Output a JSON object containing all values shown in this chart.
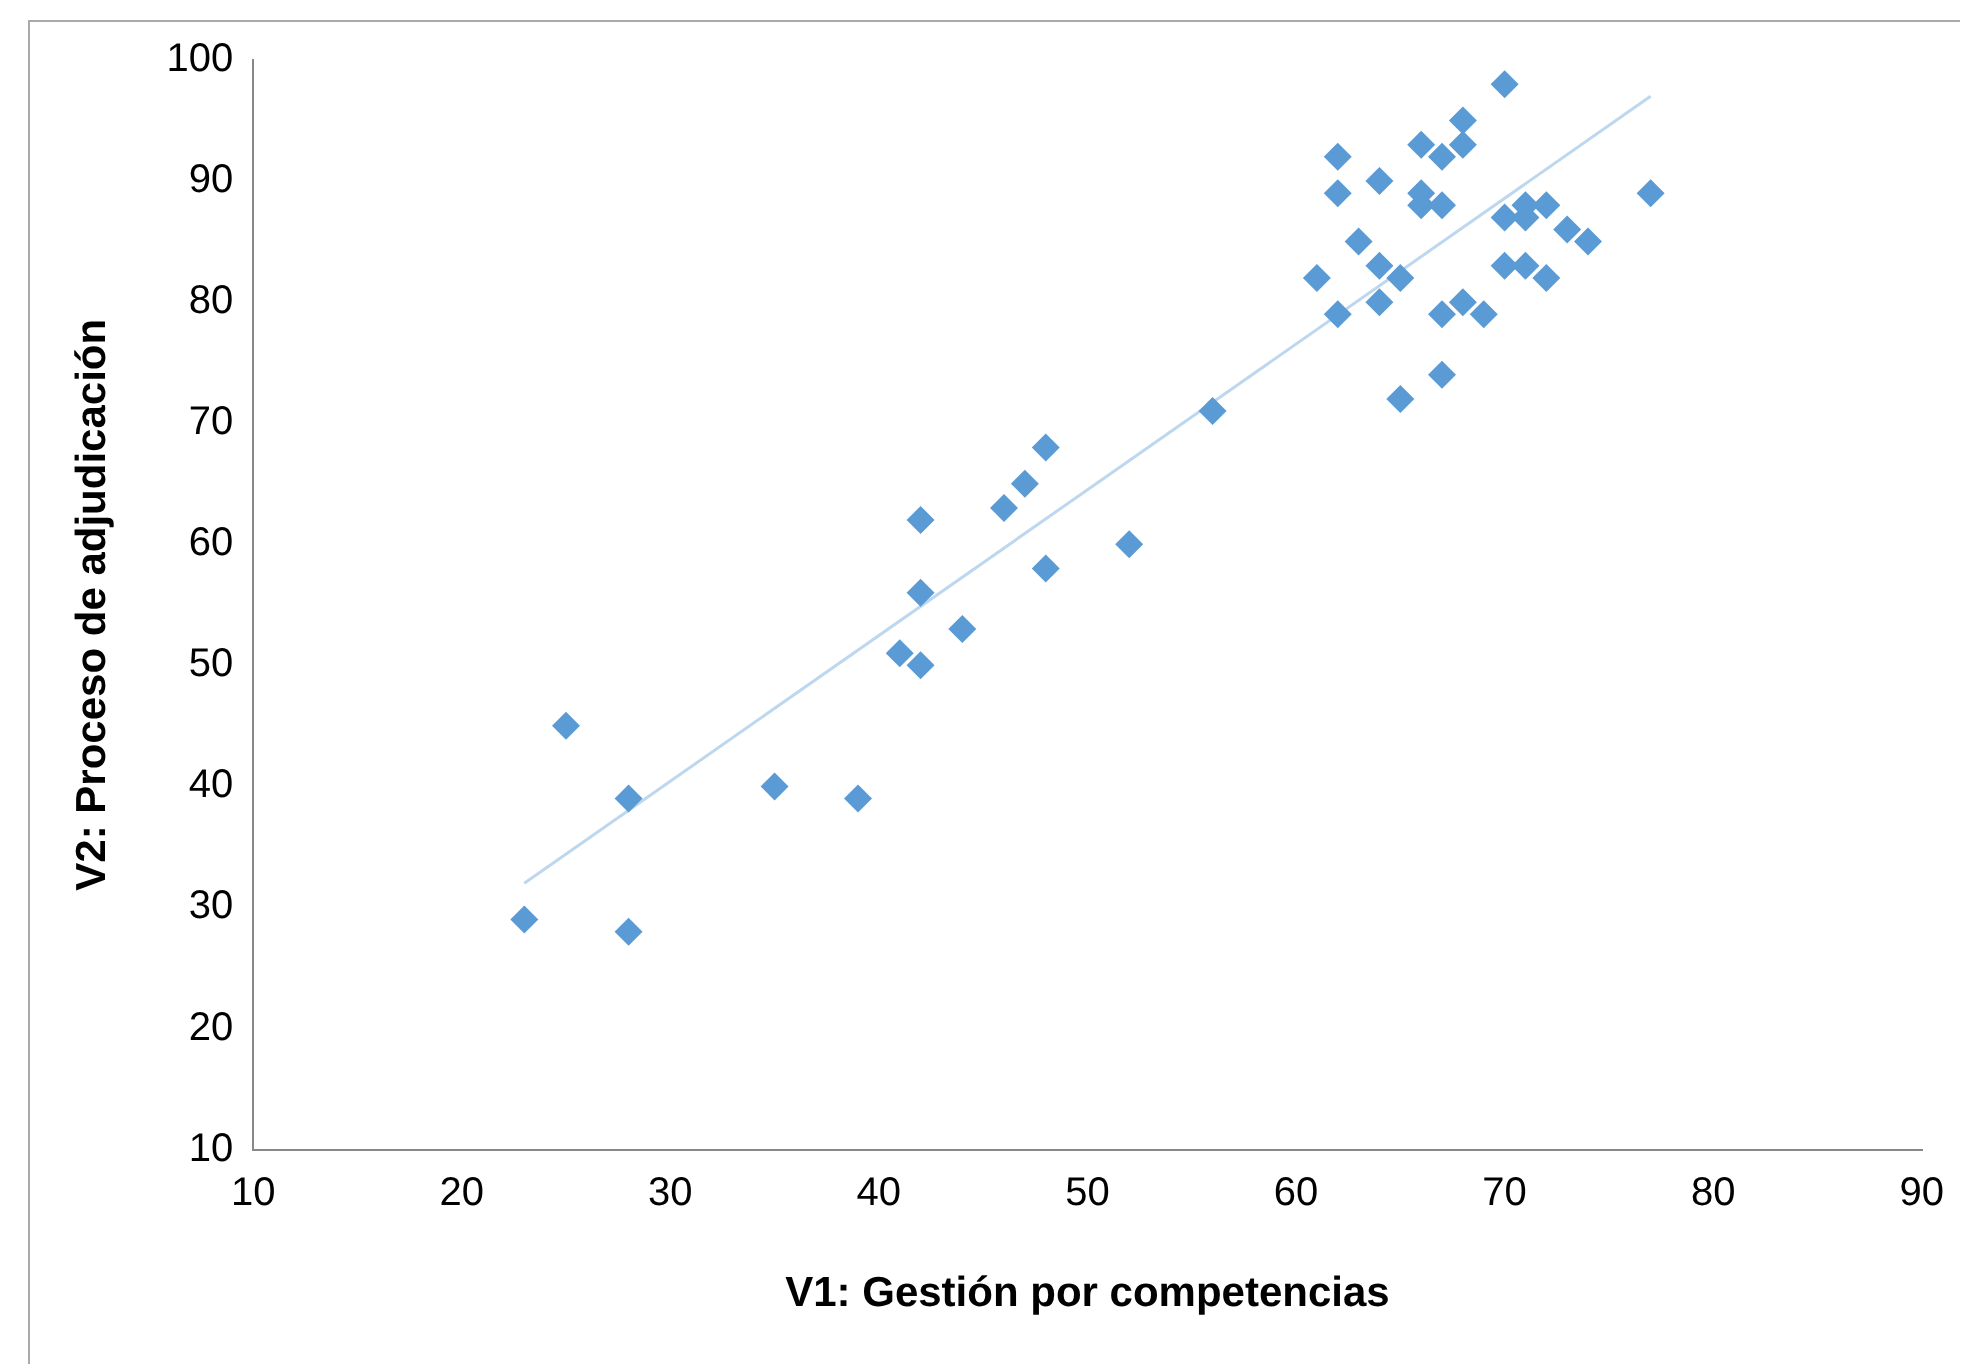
{
  "chart_data": {
    "type": "scatter",
    "xlabel": "V1: Gestión por competencias",
    "ylabel": "V2: Proceso de adjudicación",
    "xlim": [
      10,
      90
    ],
    "xticks": [
      10,
      20,
      30,
      40,
      50,
      60,
      70,
      80,
      90
    ],
    "ylim": [
      10,
      100
    ],
    "yticks": [
      10,
      20,
      30,
      40,
      50,
      60,
      70,
      80,
      90,
      100
    ],
    "grid": false,
    "legend": false,
    "marker": "diamond",
    "series": [
      {
        "type": "scatter",
        "color": "#5b9bd5",
        "x": [
          23,
          25,
          28,
          28,
          35,
          39,
          41,
          42,
          42,
          42,
          44,
          46,
          47,
          48,
          48,
          52,
          56,
          61,
          62,
          62,
          62,
          63,
          64,
          64,
          64,
          65,
          65,
          66,
          66,
          66,
          67,
          67,
          67,
          67,
          68,
          68,
          68,
          69,
          70,
          70,
          70,
          71,
          71,
          71,
          72,
          72,
          73,
          74,
          77
        ],
        "values": [
          29,
          45,
          39,
          28,
          40,
          39,
          51,
          50,
          56,
          62,
          53,
          63,
          65,
          68,
          58,
          60,
          71,
          82,
          92,
          89,
          79,
          85,
          90,
          83,
          80,
          82,
          72,
          93,
          89,
          88,
          92,
          88,
          79,
          74,
          95,
          93,
          80,
          79,
          98,
          87,
          83,
          88,
          87,
          83,
          88,
          82,
          86,
          85,
          89
        ]
      },
      {
        "type": "line",
        "color": "#bdd7ee",
        "marker": "none",
        "x": [
          23,
          77
        ],
        "values": [
          32,
          97
        ]
      }
    ]
  }
}
